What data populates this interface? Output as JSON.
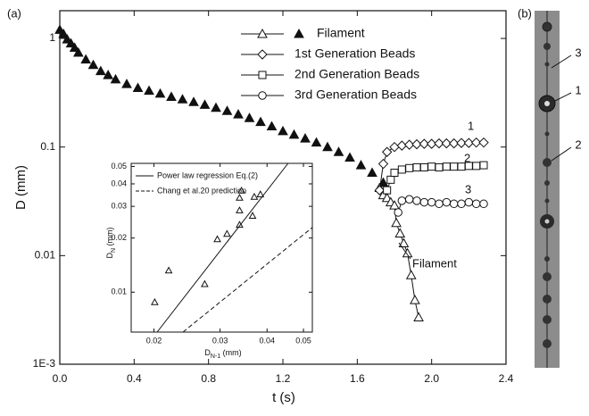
{
  "chart_data": [
    {
      "type": "scatter",
      "panel_label": "(a)",
      "xlabel": "t (s)",
      "ylabel": "D (mm)",
      "ylog": true,
      "xlim": [
        0,
        2.4
      ],
      "xticks": [
        {
          "value": 0,
          "label": "0.0"
        },
        0.4,
        0.8,
        1.2,
        1.6,
        {
          "value": 2,
          "label": "2.0"
        },
        2.4
      ],
      "ylim": [
        0.001,
        1.8
      ],
      "yticks": [
        {
          "value": 0.001,
          "label": "1E-3"
        },
        0.01,
        0.1,
        1
      ],
      "series": [
        {
          "marker": "triangle-filled",
          "line": false,
          "color": "#111111",
          "x": [
            0,
            0.02,
            0.04,
            0.06,
            0.08,
            0.1,
            0.14,
            0.18,
            0.22,
            0.26,
            0.3,
            0.36,
            0.42,
            0.48,
            0.54,
            0.6,
            0.66,
            0.72,
            0.78,
            0.84,
            0.9,
            0.96,
            1.02,
            1.08,
            1.14,
            1.2,
            1.26,
            1.32,
            1.38,
            1.44,
            1.5,
            1.56,
            1.62,
            1.68,
            1.74
          ],
          "values": [
            1.2,
            1.1,
            0.98,
            0.9,
            0.82,
            0.74,
            0.64,
            0.57,
            0.5,
            0.46,
            0.42,
            0.38,
            0.35,
            0.33,
            0.31,
            0.29,
            0.275,
            0.26,
            0.245,
            0.23,
            0.215,
            0.2,
            0.185,
            0.17,
            0.155,
            0.14,
            0.13,
            0.12,
            0.11,
            0.1,
            0.09,
            0.08,
            0.068,
            0.058,
            0.047
          ]
        },
        {
          "name": "Filament",
          "marker": "triangle",
          "line": true,
          "color": "#111111",
          "x": [
            1.72,
            1.74,
            1.76,
            1.78,
            1.8,
            1.81,
            1.83,
            1.85,
            1.87,
            1.89,
            1.91,
            1.93
          ],
          "values": [
            0.042,
            0.036,
            0.034,
            0.031,
            0.029,
            0.02,
            0.016,
            0.013,
            0.0105,
            0.0066,
            0.0039,
            0.0027
          ]
        },
        {
          "name": "1st Generation Beads",
          "marker": "diamond",
          "line": true,
          "color": "#111111",
          "x": [
            1.72,
            1.74,
            1.76,
            1.8,
            1.84,
            1.88,
            1.92,
            1.96,
            2.0,
            2.04,
            2.08,
            2.12,
            2.16,
            2.2,
            2.24,
            2.28
          ],
          "values": [
            0.04,
            0.07,
            0.09,
            0.1,
            0.103,
            0.105,
            0.106,
            0.107,
            0.107,
            0.108,
            0.108,
            0.108,
            0.109,
            0.109,
            0.11,
            0.11
          ]
        },
        {
          "name": "2nd Generation Beads",
          "marker": "square",
          "line": true,
          "color": "#111111",
          "x": [
            1.76,
            1.78,
            1.8,
            1.84,
            1.88,
            1.92,
            1.96,
            2.0,
            2.04,
            2.08,
            2.12,
            2.16,
            2.2,
            2.24,
            2.28
          ],
          "values": [
            0.04,
            0.05,
            0.058,
            0.062,
            0.064,
            0.065,
            0.065,
            0.066,
            0.065,
            0.066,
            0.066,
            0.066,
            0.067,
            0.067,
            0.068
          ]
        },
        {
          "name": "3rd Generation Beads",
          "marker": "circle",
          "line": true,
          "color": "#111111",
          "x": [
            1.82,
            1.84,
            1.88,
            1.92,
            1.96,
            2.0,
            2.04,
            2.08,
            2.12,
            2.16,
            2.2,
            2.24,
            2.28
          ],
          "values": [
            0.025,
            0.032,
            0.033,
            0.032,
            0.031,
            0.031,
            0.03,
            0.031,
            0.03,
            0.03,
            0.031,
            0.03,
            0.03
          ]
        }
      ],
      "annotations": [
        "1",
        "2",
        "3",
        "Filament"
      ]
    },
    {
      "type": "scatter",
      "xlabel": {
        "main": "D",
        "sub": "N-1",
        "unit": " (mm)"
      },
      "ylabel": {
        "main": "D",
        "sub": "N",
        "unit": " (mm)"
      },
      "xlog": true,
      "ylog": true,
      "xlim": [
        0.0174,
        0.0528
      ],
      "xticks": [
        0.02,
        0.03,
        0.04,
        0.05
      ],
      "ylim": [
        0.006,
        0.052
      ],
      "yticks": [
        0.01,
        0.02,
        0.03,
        0.04,
        0.05
      ],
      "series": [
        {
          "marker": "triangle",
          "line": false,
          "color": "#111111",
          "x": [
            0.0201,
            0.0219,
            0.0273,
            0.0295,
            0.0313,
            0.0338,
            0.0338,
            0.0338,
            0.0342,
            0.0366,
            0.037,
            0.0384
          ],
          "values": [
            0.0088,
            0.0132,
            0.0111,
            0.0197,
            0.0211,
            0.0285,
            0.0237,
            0.0335,
            0.0367,
            0.0266,
            0.0339,
            0.035
          ]
        },
        {
          "name": "Power law regression Eq.(2)",
          "marker": "none",
          "line": true,
          "dash": false,
          "color": "#111111",
          "x": [
            0.0204,
            0.0455
          ],
          "values": [
            0.006,
            0.052
          ]
        },
        {
          "name": "Chang et al.20 prediction",
          "marker": "none",
          "line": true,
          "dash": true,
          "color": "#111111",
          "x": [
            0.0239,
            0.0528
          ],
          "values": [
            0.006,
            0.0229
          ]
        }
      ]
    }
  ],
  "photo": {
    "panel_label": "(b)",
    "labels": [
      "1",
      "2",
      "3"
    ]
  }
}
